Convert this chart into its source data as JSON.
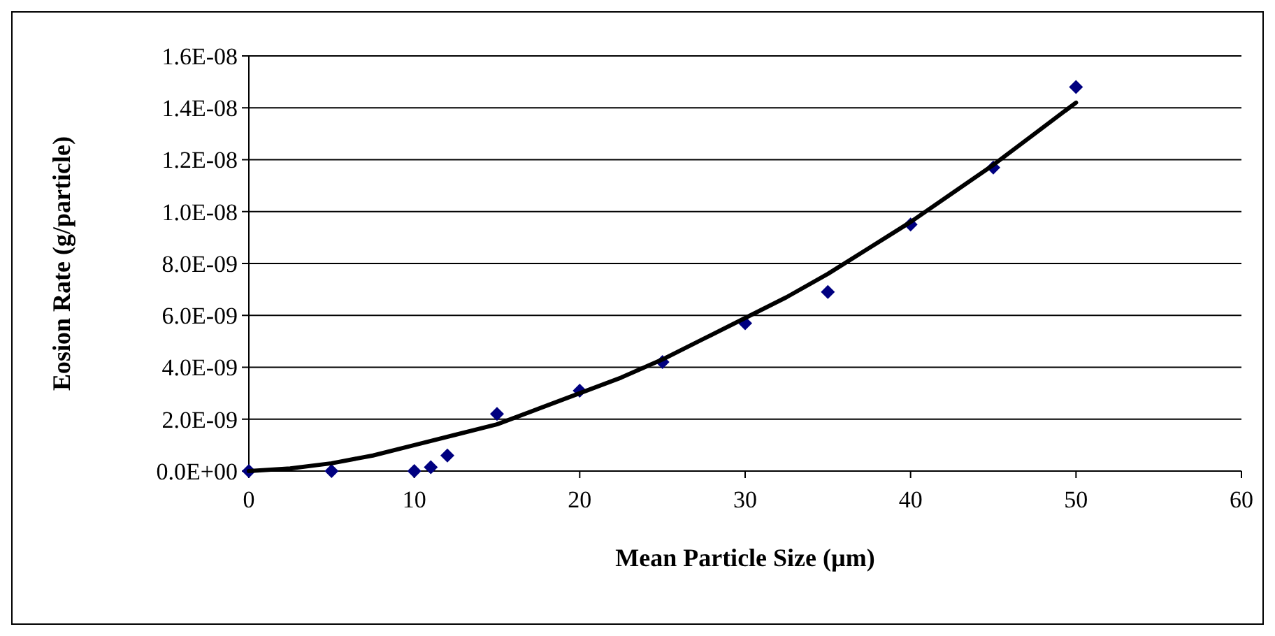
{
  "chart_data": {
    "type": "scatter",
    "xlabel": "Mean Particle Size (µm)",
    "ylabel": "Eosion Rate (g/particle)",
    "xlim": [
      0,
      60
    ],
    "xticks": [
      0,
      10,
      20,
      30,
      40,
      50,
      60
    ],
    "ylim": [
      0,
      1.6e-08
    ],
    "yticks": [
      {
        "value": 0,
        "label": "0.0E+00"
      },
      {
        "value": 2e-09,
        "label": "2.0E-09"
      },
      {
        "value": 4e-09,
        "label": "4.0E-09"
      },
      {
        "value": 6e-09,
        "label": "6.0E-09"
      },
      {
        "value": 8e-09,
        "label": "8.0E-09"
      },
      {
        "value": 1e-08,
        "label": "1.0E-08"
      },
      {
        "value": 1.2e-08,
        "label": "1.2E-08"
      },
      {
        "value": 1.4e-08,
        "label": "1.4E-08"
      },
      {
        "value": 1.6e-08,
        "label": "1.6E-08"
      }
    ],
    "grid": "y",
    "series": [
      {
        "color": "#000080",
        "marker": "diamond",
        "x": [
          0,
          5,
          10,
          11,
          12,
          15,
          20,
          25,
          30,
          35,
          40,
          45,
          50
        ],
        "values": [
          0,
          0,
          0,
          1.5e-10,
          6e-10,
          2.2e-09,
          3.1e-09,
          4.2e-09,
          5.7e-09,
          6.9e-09,
          9.5e-09,
          1.17e-08,
          1.48e-08
        ]
      },
      {
        "type": "line",
        "color": "#000000",
        "marker": "none",
        "line_style": "solid",
        "x": [
          0,
          2.5,
          5,
          7.5,
          10,
          12.5,
          15,
          17.5,
          20,
          22.5,
          25,
          27.5,
          30,
          32.5,
          35,
          37.5,
          40,
          42.5,
          45,
          47.5,
          50
        ],
        "values": [
          0,
          1e-10,
          3e-10,
          6e-10,
          1e-09,
          1.4e-09,
          1.8e-09,
          2.4e-09,
          3e-09,
          3.6e-09,
          4.3e-09,
          5.1e-09,
          5.9e-09,
          6.7e-09,
          7.6e-09,
          8.6e-09,
          9.6e-09,
          1.07e-08,
          1.18e-08,
          1.3e-08,
          1.42e-08
        ]
      }
    ]
  }
}
